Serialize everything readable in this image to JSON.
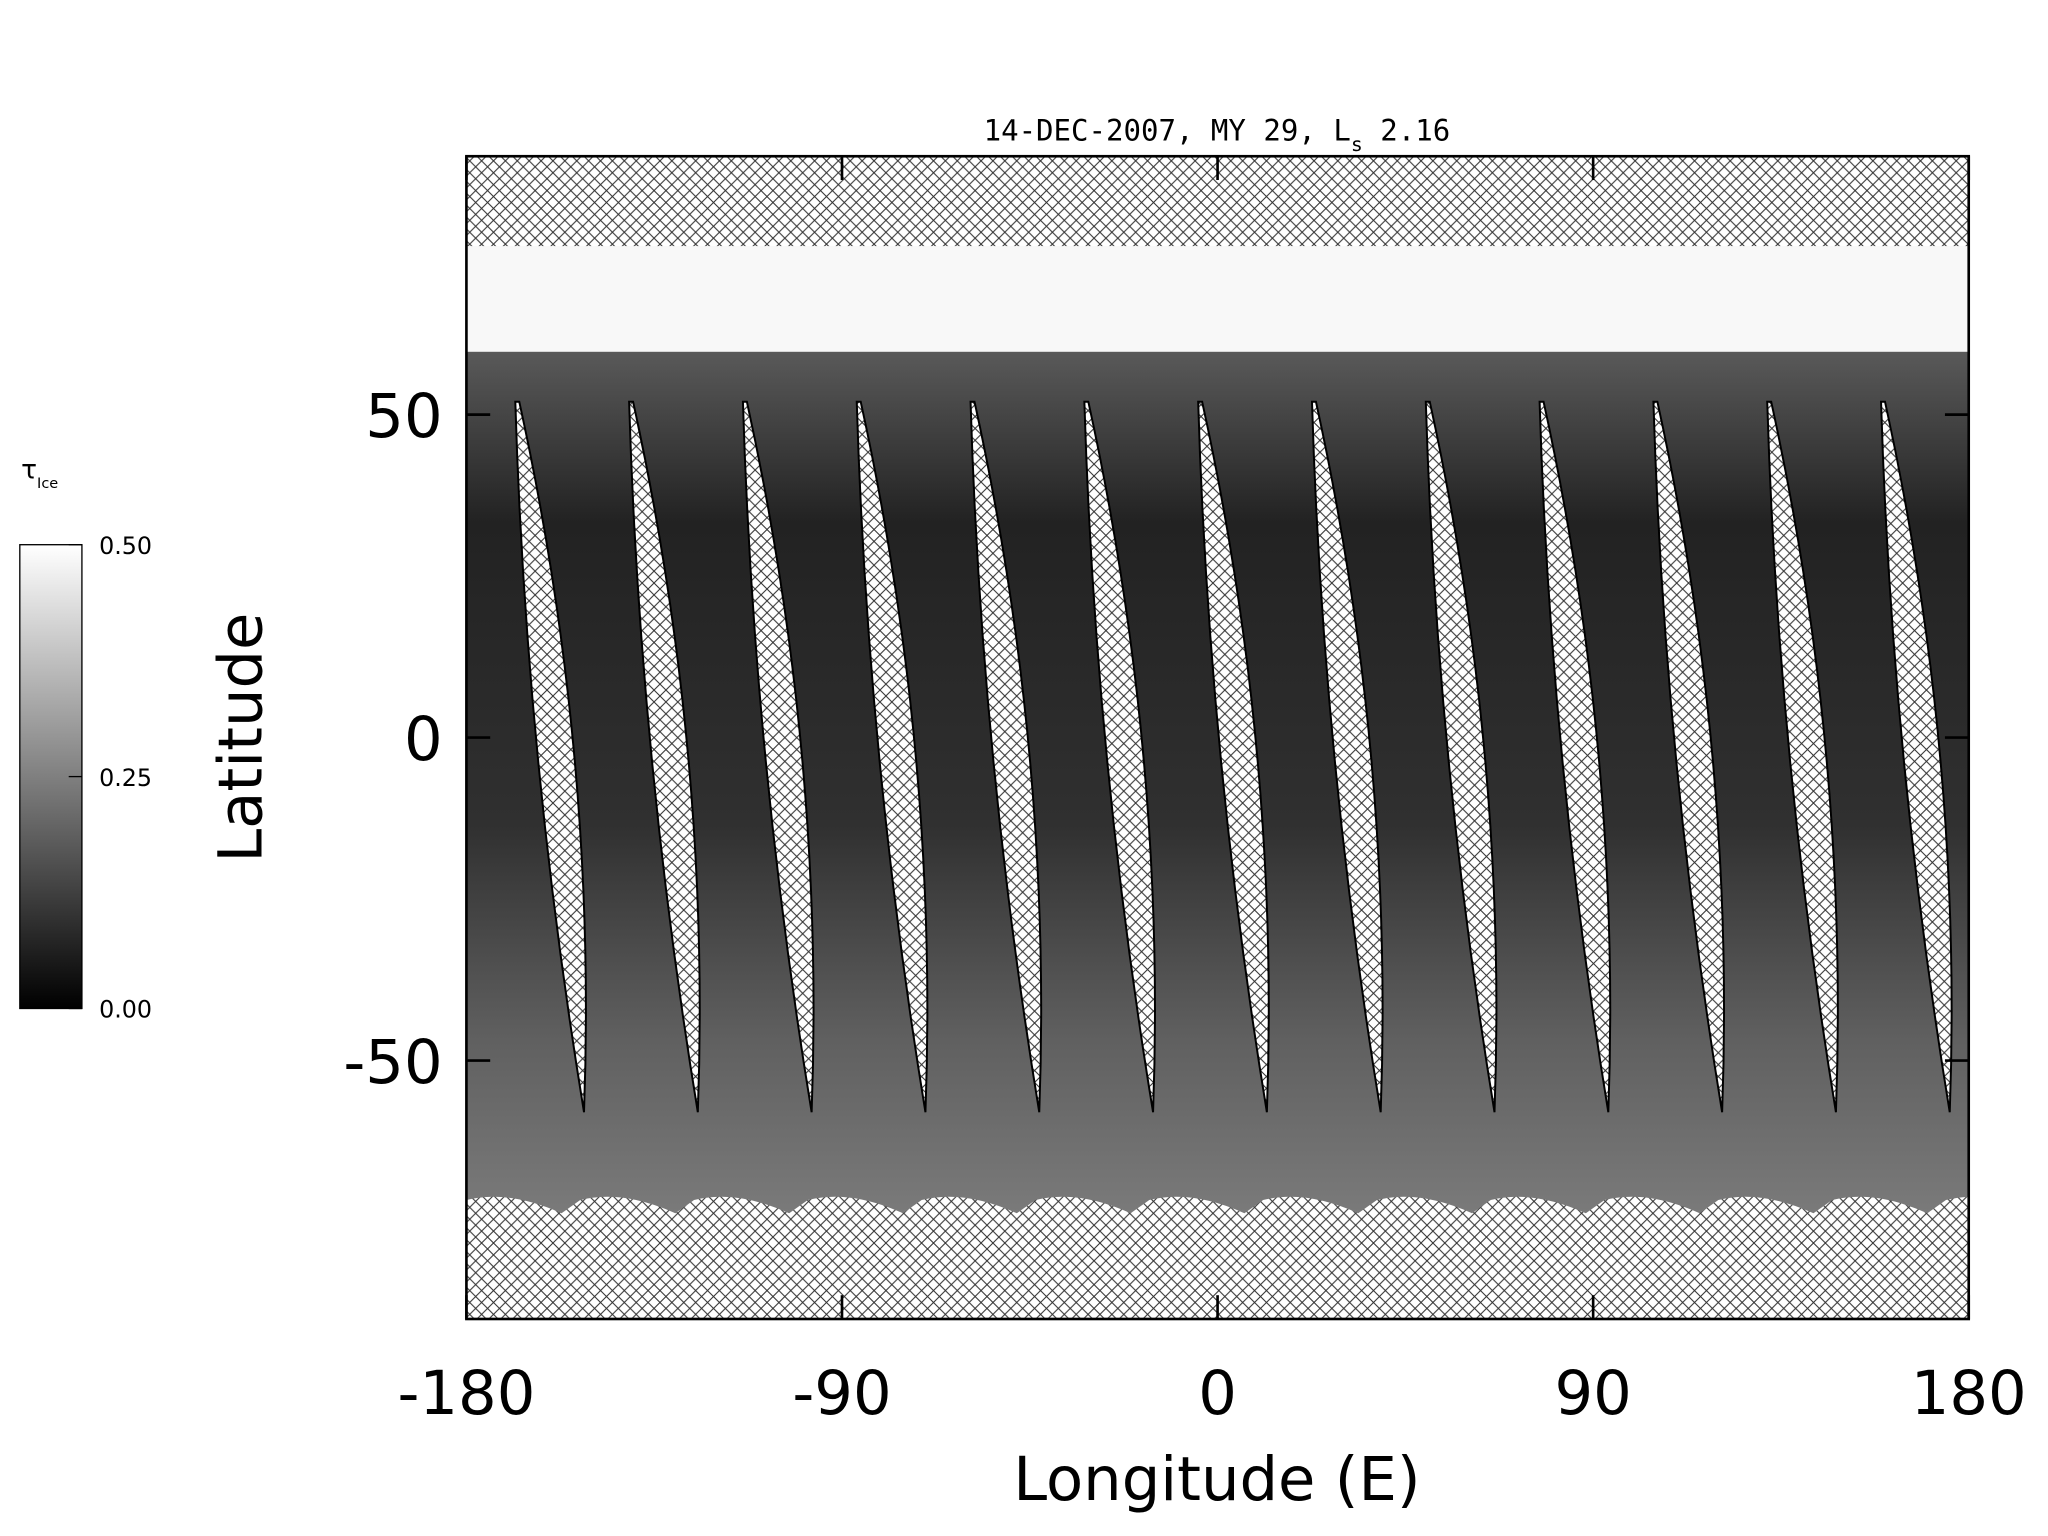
{
  "chart_data": {
    "type": "map",
    "title_parts": [
      "14-DEC-2007, MY 29,  L",
      "s",
      " 2.16"
    ],
    "xlabel": "Longitude (E)",
    "ylabel": "Latitude",
    "xlim": [
      -180,
      180
    ],
    "xticks": [
      -180,
      -90,
      0,
      90,
      180
    ],
    "ylim": [
      -90,
      90
    ],
    "yticks": [
      -50,
      0,
      50
    ],
    "colorbar": {
      "symbol": "τ",
      "subscript": "Ice",
      "lim": [
        0,
        0.5
      ],
      "ticks": [
        {
          "value": 0.5,
          "label": "0.50"
        },
        {
          "value": 0.25,
          "label": "0.25"
        },
        {
          "value": 0,
          "label": "0.00"
        }
      ]
    }
  }
}
